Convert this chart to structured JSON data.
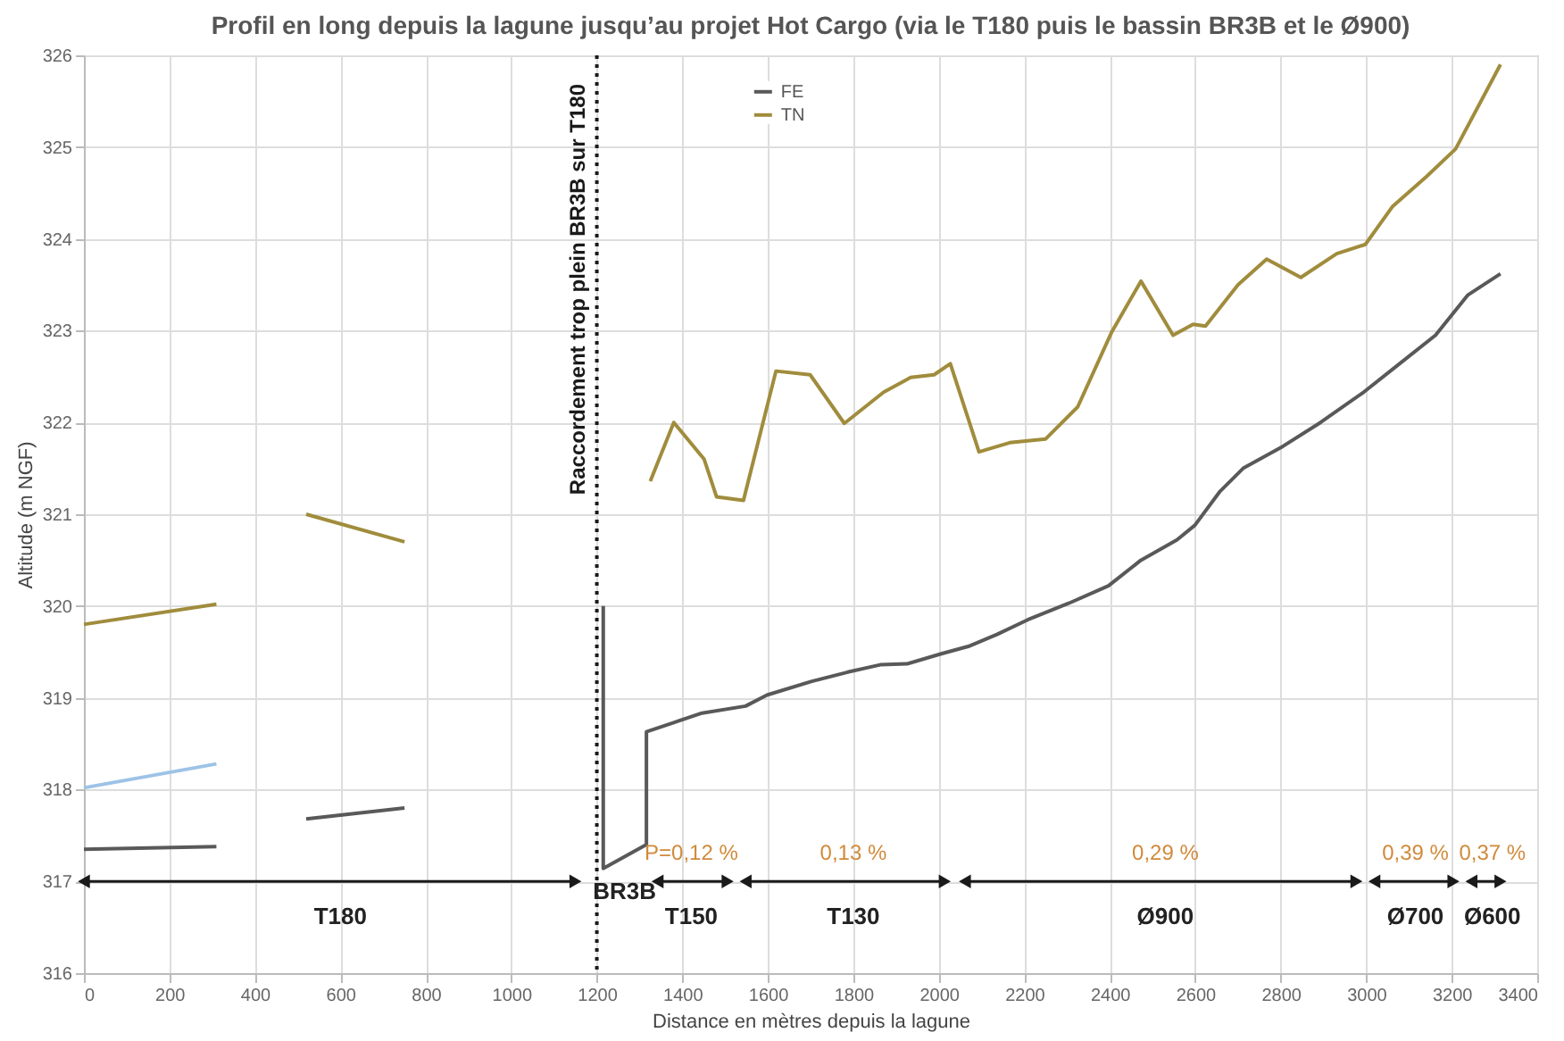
{
  "chart_data": {
    "type": "line",
    "title": "Profil en long depuis la lagune jusqu’au projet Hot Cargo (via le T180 puis le bassin BR3B et le Ø900)",
    "xlabel": "Distance en mètres depuis la lagune",
    "ylabel": "Altitude (m NGF)",
    "xlim": [
      0,
      3400
    ],
    "xticks": [
      0,
      200,
      400,
      600,
      800,
      1000,
      1200,
      1400,
      1600,
      1800,
      2000,
      2200,
      2400,
      2600,
      2800,
      3000,
      3200,
      3400
    ],
    "ylim": [
      316,
      326
    ],
    "yticks": [
      316,
      317,
      318,
      319,
      320,
      321,
      322,
      323,
      324,
      325,
      326
    ],
    "grid": true,
    "legend": "top",
    "line_style": "solid",
    "series": [
      {
        "name": "FE",
        "color": "#595959",
        "x": [
          0,
          310,
          320,
          520,
          750,
          760,
          1215,
          1215,
          1316,
          1316,
          1380,
          1443,
          1548,
          1598,
          1703,
          1787,
          1863,
          1926,
          2006,
          2069,
          2136,
          2208,
          2304,
          2397,
          2473,
          2557,
          2599,
          2658,
          2712,
          2805,
          2893,
          2994,
          3078,
          3162,
          3238,
          3314
        ],
        "values": [
          317.35,
          317.38,
          null,
          317.68,
          317.8,
          null,
          320.0,
          317.14,
          317.4,
          318.63,
          318.73,
          318.83,
          318.91,
          319.03,
          319.18,
          319.28,
          319.36,
          319.37,
          319.48,
          319.56,
          319.69,
          319.85,
          320.03,
          320.22,
          320.5,
          320.72,
          320.88,
          321.25,
          321.5,
          321.74,
          322.0,
          322.33,
          322.64,
          322.95,
          323.39,
          323.62
        ]
      },
      {
        "name": "TN",
        "color": "#a08c3c",
        "x": [
          0,
          310,
          320,
          520,
          750,
          760,
          1325,
          1380,
          1451,
          1480,
          1543,
          1619,
          1699,
          1779,
          1871,
          1934,
          1989,
          2027,
          2094,
          2166,
          2250,
          2325,
          2405,
          2473,
          2548,
          2595,
          2624,
          2700,
          2767,
          2847,
          2931,
          2998,
          3061,
          3141,
          3209,
          3314
        ],
        "values": [
          319.8,
          320.02,
          null,
          321.0,
          320.7,
          null,
          321.36,
          322.0,
          321.6,
          321.19,
          321.15,
          322.56,
          322.52,
          321.99,
          322.33,
          322.49,
          322.52,
          322.64,
          321.68,
          321.78,
          321.82,
          322.17,
          322.99,
          323.54,
          322.95,
          323.07,
          323.05,
          323.5,
          323.78,
          323.58,
          323.84,
          323.94,
          324.35,
          324.68,
          324.98,
          325.9
        ]
      },
      {
        "color": "#9dc3e6",
        "x": [
          0,
          310
        ],
        "values": [
          318.02,
          318.28
        ]
      },
      {
        "color": "#1a1a1a",
        "marker": "triangle",
        "x": [
          0,
          1150,
          1160,
          1342,
          1506,
          1527,
          1548,
          2014,
          2040,
          2061,
          2977,
          3000,
          3019,
          3204,
          3225,
          3246,
          3314
        ],
        "values": [
          317,
          317,
          null,
          317,
          317,
          null,
          317,
          317,
          null,
          317,
          317,
          null,
          317,
          317,
          null,
          317,
          317
        ]
      }
    ],
    "ref_lines": [
      {
        "axis": "x",
        "value": 1200,
        "label": "Raccordement trop plein BR3B sur T180",
        "color": "#1a1a1a",
        "line_style": "dotted"
      }
    ],
    "annotations": [
      {
        "text": "T180",
        "x": 600,
        "y": 317
      },
      {
        "text": "BR3B",
        "x": 1265,
        "y": 317.27
      },
      {
        "text": "T150",
        "x": 1421,
        "y": 317
      },
      {
        "text": "P=0,12 %",
        "x": 1421,
        "y": 317
      },
      {
        "text": "T130",
        "x": 1800,
        "y": 317
      },
      {
        "text": "0,13 %",
        "x": 1800,
        "y": 317
      },
      {
        "text": "Ø900",
        "x": 2530,
        "y": 317
      },
      {
        "text": "0,29 %",
        "x": 2530,
        "y": 317
      },
      {
        "text": "Ø700",
        "x": 3115,
        "y": 317
      },
      {
        "text": "0,39 %",
        "x": 3115,
        "y": 317
      },
      {
        "text": "Ø600",
        "x": 3295,
        "y": 317
      },
      {
        "text": "0,37 %",
        "x": 3295,
        "y": 317
      }
    ]
  }
}
